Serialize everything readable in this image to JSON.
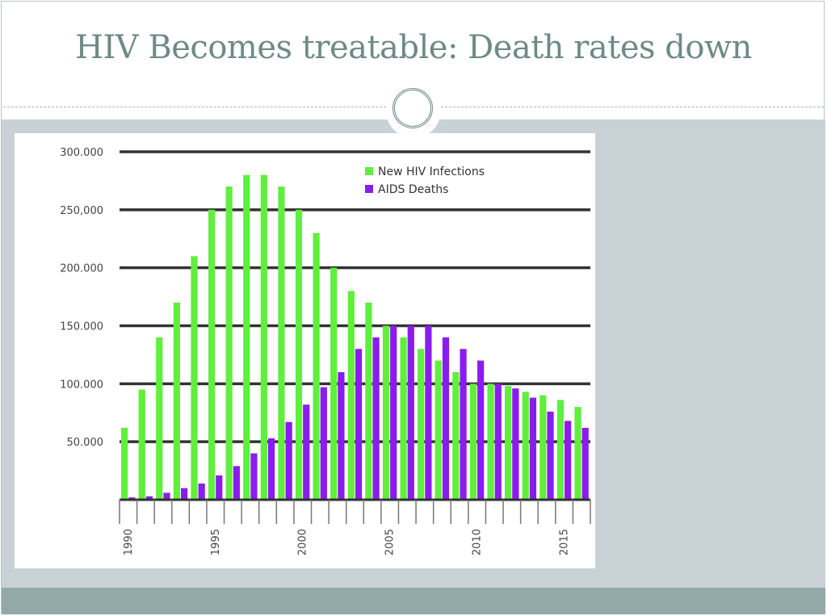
{
  "slide": {
    "title": "HIV Becomes treatable: Death rates down"
  },
  "colors": {
    "title": "#6e8a86",
    "band": "#c8d2d6",
    "footer": "#93a9a8",
    "infections": "#5fef3c",
    "deaths": "#8a1cf0",
    "gridline": "#333333"
  },
  "chart_data": {
    "type": "bar",
    "title": "",
    "xlabel": "",
    "ylabel": "",
    "ylim": [
      0,
      300000
    ],
    "grid": true,
    "legend_position": "top-right",
    "y_ticks": [
      {
        "value": 300000,
        "label": "300.000"
      },
      {
        "value": 250000,
        "label": "250,000"
      },
      {
        "value": 200000,
        "label": "200.000"
      },
      {
        "value": 150000,
        "label": "150.000"
      },
      {
        "value": 100000,
        "label": "100.000"
      },
      {
        "value": 50000,
        "label": "50.000"
      }
    ],
    "x_tick_labels": [
      {
        "year": 1990,
        "label": "1990"
      },
      {
        "year": 1995,
        "label": "1995"
      },
      {
        "year": 2000,
        "label": "2000"
      },
      {
        "year": 2005,
        "label": "2005"
      },
      {
        "year": 2010,
        "label": "2010"
      },
      {
        "year": 2015,
        "label": "2015"
      }
    ],
    "categories": [
      1990,
      1991,
      1992,
      1993,
      1994,
      1995,
      1996,
      1997,
      1998,
      1999,
      2000,
      2001,
      2002,
      2003,
      2004,
      2005,
      2006,
      2007,
      2008,
      2009,
      2010,
      2011,
      2012,
      2013,
      2014,
      2015,
      2016
    ],
    "series": [
      {
        "name": "New HIV Infections",
        "values": [
          62000,
          95000,
          140000,
          170000,
          210000,
          250000,
          270000,
          280000,
          280000,
          270000,
          250000,
          230000,
          200000,
          180000,
          170000,
          150000,
          140000,
          130000,
          120000,
          110000,
          100000,
          100000,
          98000,
          93000,
          90000,
          86000,
          80000
        ]
      },
      {
        "name": "AIDS Deaths",
        "values": [
          2000,
          3000,
          6000,
          10000,
          14000,
          21000,
          29000,
          40000,
          53000,
          67000,
          82000,
          97000,
          110000,
          130000,
          140000,
          150000,
          150000,
          150000,
          140000,
          130000,
          120000,
          100000,
          96000,
          88000,
          76000,
          68000,
          62000
        ]
      }
    ]
  }
}
